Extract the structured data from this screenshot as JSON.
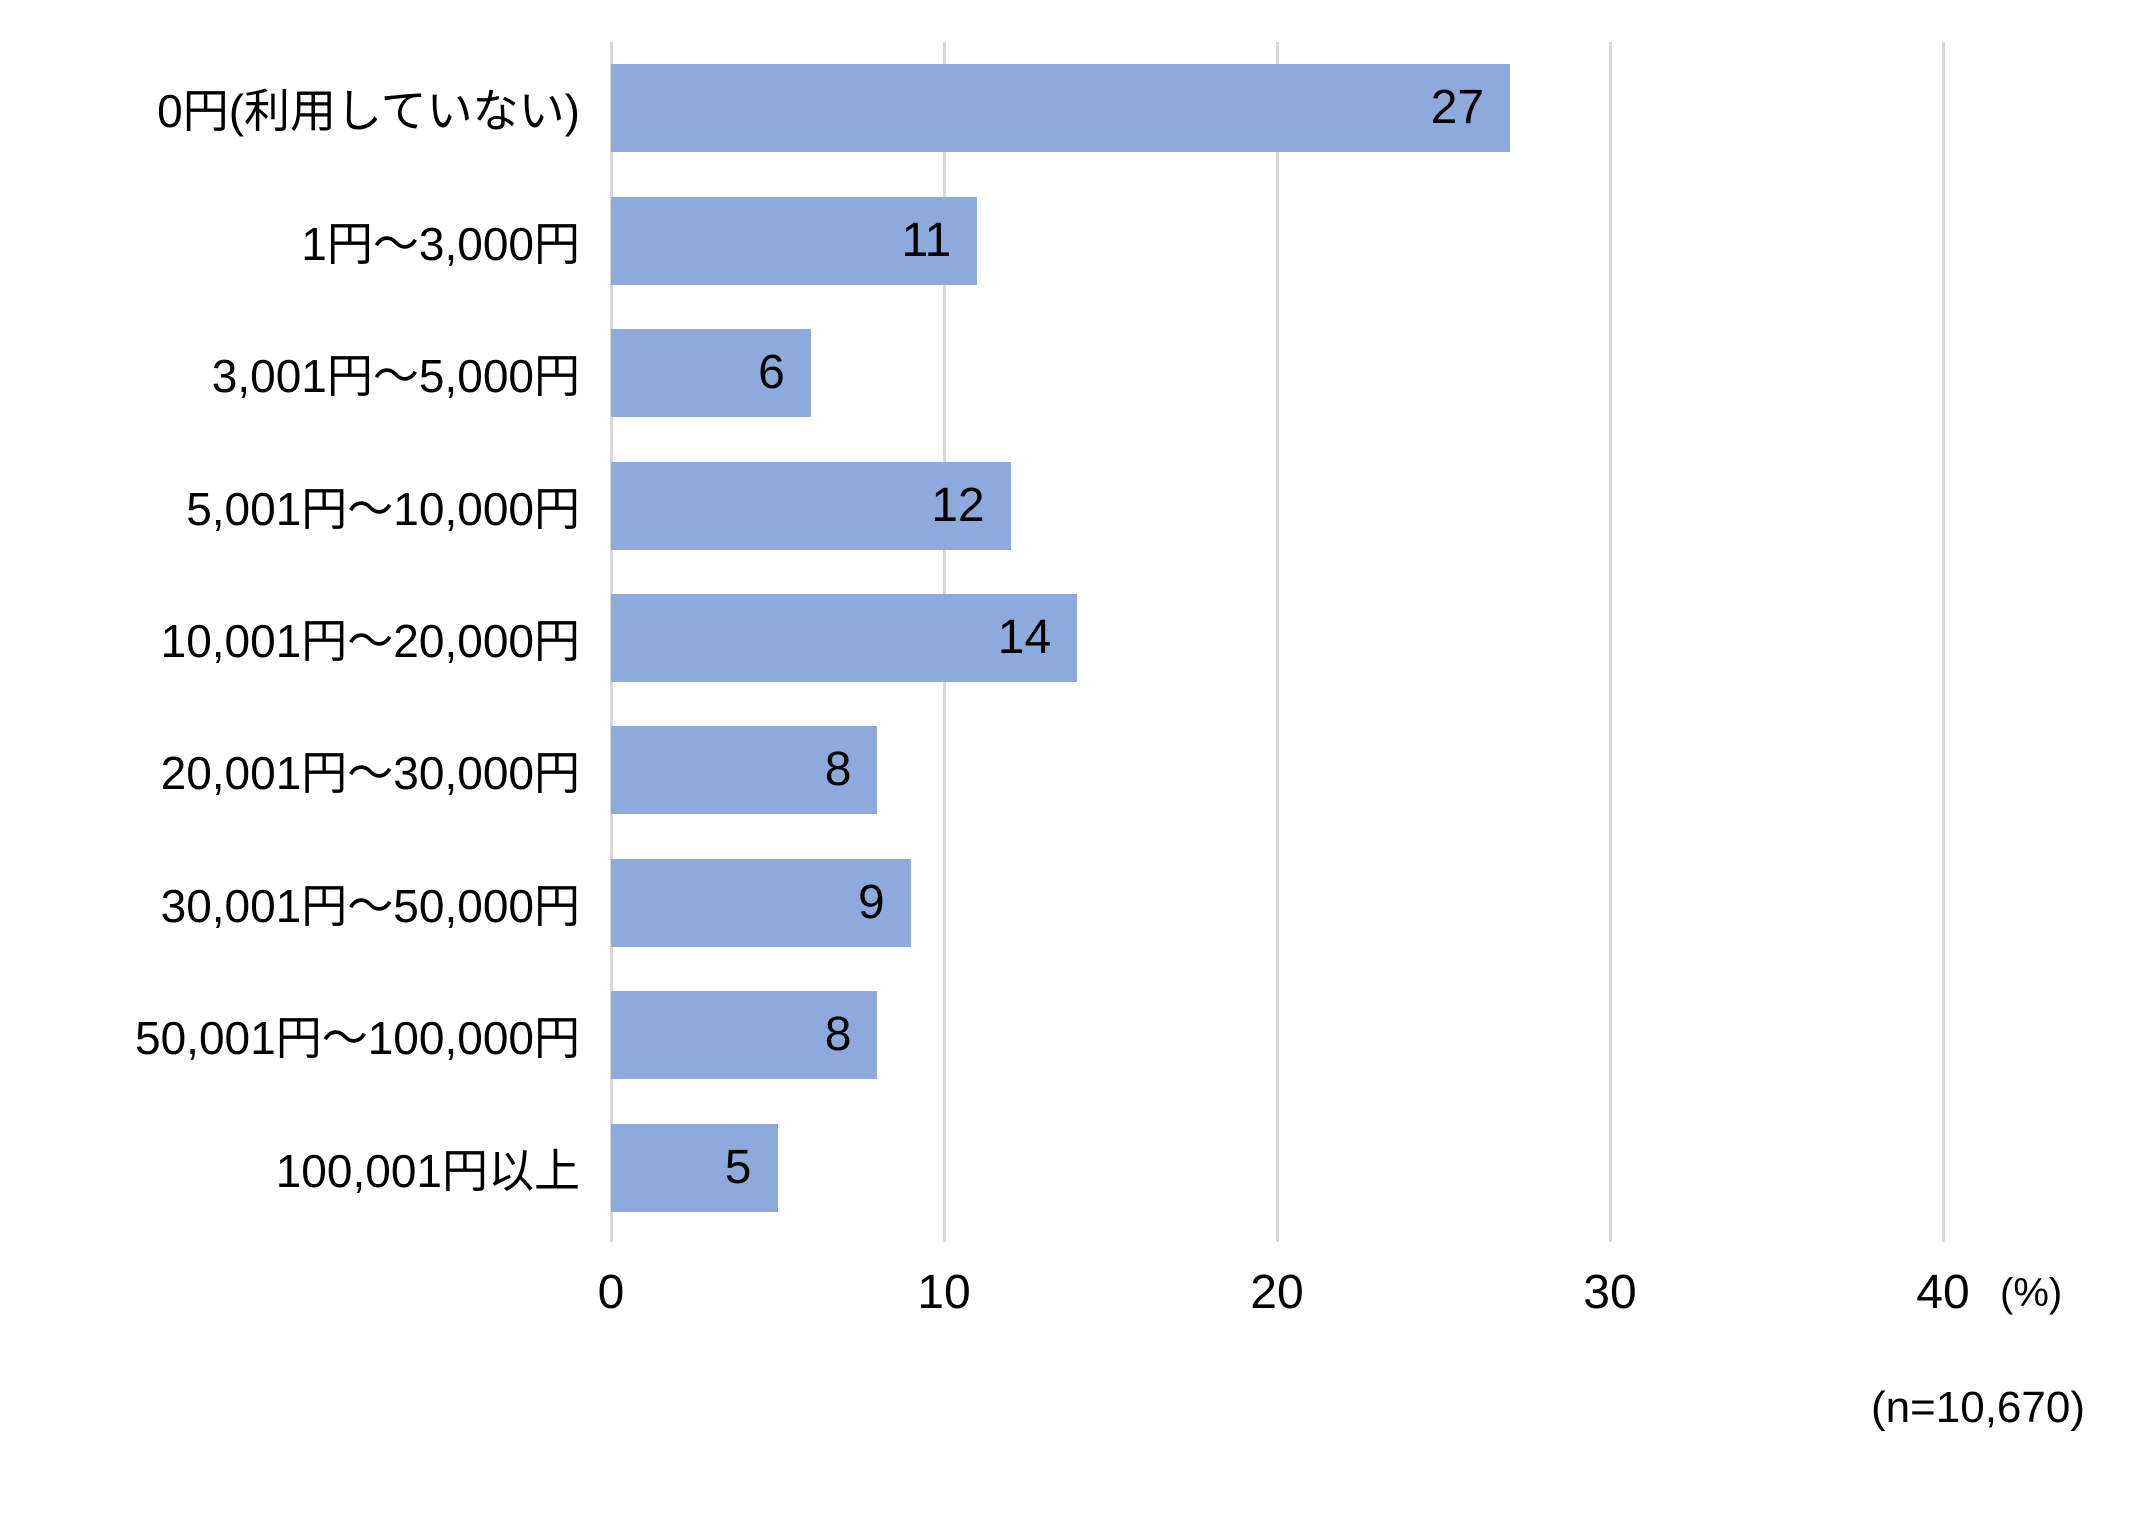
{
  "chart_data": {
    "type": "bar",
    "orientation": "horizontal",
    "title": "",
    "xlabel": "(%)",
    "ylabel": "",
    "categories": [
      "0円(利用していない)",
      "1円〜3,000円",
      "3,001円〜5,000円",
      "5,001円〜10,000円",
      "10,001円〜20,000円",
      "20,001円〜30,000円",
      "30,001円〜50,000円",
      "50,001円〜100,000円",
      "100,001円以上"
    ],
    "values": [
      27,
      11,
      6,
      12,
      14,
      8,
      9,
      8,
      5
    ],
    "value_labels": [
      "27",
      "11",
      "6",
      "12",
      "14",
      "8",
      "9",
      "8",
      "5"
    ],
    "xlim": [
      0,
      40
    ],
    "xticks": [
      0,
      10,
      20,
      30,
      40
    ],
    "xtick_labels": [
      "0",
      "10",
      "20",
      "30",
      "40"
    ],
    "grid": true,
    "legend": "none",
    "bar_color": "#8ea9db",
    "gridline_color": "#d9d9d9",
    "label_position": "inside-end"
  },
  "axis": {
    "unit_label": "(%)"
  },
  "note": {
    "sample_size": "(n=10,670)"
  }
}
